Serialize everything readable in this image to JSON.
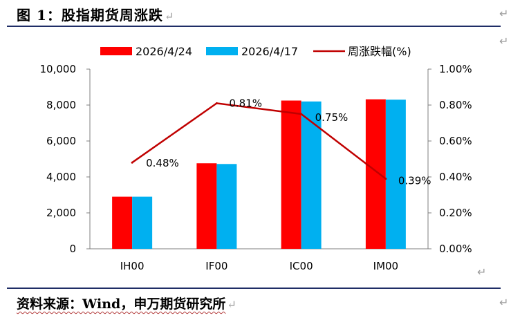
{
  "header": {
    "title": "图 1：股指期货周涨跌"
  },
  "footer": {
    "source": "资料来源：Wind，申万期货研究所"
  },
  "colors": {
    "bar_current": "#ff0000",
    "bar_previous": "#00b0f0",
    "line": "#c00000",
    "rule": "#1f2d66"
  },
  "chart_data": {
    "type": "bar",
    "categories": [
      "IH00",
      "IF00",
      "IC00",
      "IM00"
    ],
    "series": [
      {
        "name": "2026/4/24",
        "type": "bar",
        "axis": "left",
        "values": [
          2900,
          4760,
          8250,
          8320
        ]
      },
      {
        "name": "2026/4/17",
        "type": "bar",
        "axis": "left",
        "values": [
          2900,
          4720,
          8200,
          8300
        ]
      },
      {
        "name": "周涨跌幅(%)",
        "type": "line",
        "axis": "right",
        "values": [
          0.48,
          0.81,
          0.75,
          0.39
        ]
      }
    ],
    "data_labels": [
      "0.48%",
      "0.81%",
      "0.75%",
      "0.39%"
    ],
    "y_left": {
      "range": [
        0,
        10000
      ],
      "ticks": [
        "0",
        "2,000",
        "4,000",
        "6,000",
        "8,000",
        "10,000"
      ]
    },
    "y_right": {
      "range": [
        0,
        1.0
      ],
      "ticks": [
        "0.00%",
        "0.20%",
        "0.40%",
        "0.60%",
        "0.80%",
        "1.00%"
      ]
    },
    "legend": {
      "placement": "top"
    },
    "grid": false
  }
}
